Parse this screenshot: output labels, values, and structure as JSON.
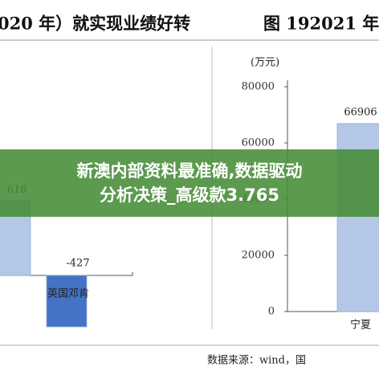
{
  "chart_data": [
    {
      "type": "bar",
      "title": "020 年）就实现业绩好转",
      "categories": [
        null,
        "英国邓肯"
      ],
      "values": [
        618,
        -427
      ],
      "value_labels": [
        "618",
        "-427"
      ],
      "colors": [
        "#b4c7e7",
        "#4472c4"
      ]
    },
    {
      "type": "bar",
      "title": "图 192021 年",
      "y_label": "(万元)",
      "categories": [
        "宁夏"
      ],
      "values": [
        66906
      ],
      "color": "#b4c7e7",
      "ylim": [
        0,
        80000
      ],
      "yticks": [
        0,
        20000,
        40000,
        60000,
        80000
      ]
    }
  ],
  "source": "数据来源：wind，国",
  "overlay": {
    "lines": [
      "新澳内部资料最准确,数据驱动分析决策_高级款3.765"
    ]
  }
}
